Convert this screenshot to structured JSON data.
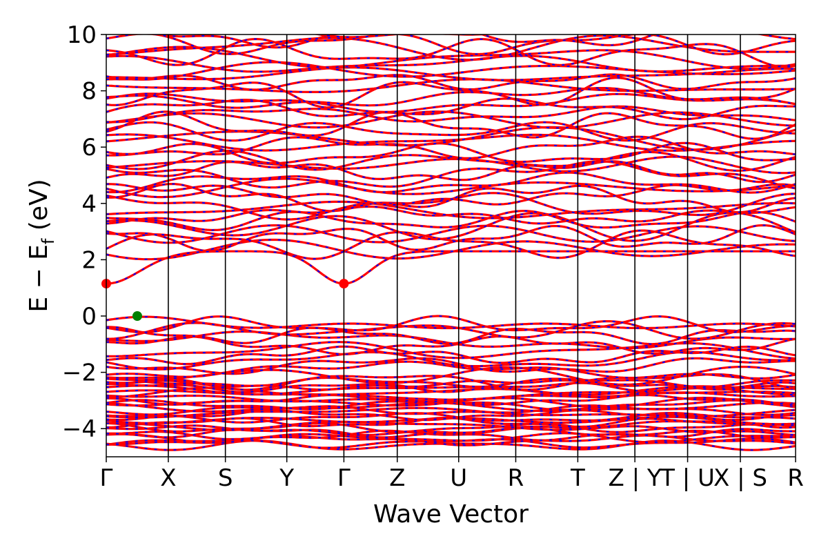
{
  "chart_data": {
    "type": "line",
    "title": "",
    "xlabel": "Wave Vector",
    "ylabel_parts": [
      "E − E",
      "f",
      " (eV)"
    ],
    "ylim": [
      -5,
      10
    ],
    "yticks": [
      {
        "value": 10,
        "label": "10"
      },
      {
        "value": 8,
        "label": "8"
      },
      {
        "value": 6,
        "label": "6"
      },
      {
        "value": 4,
        "label": "4"
      },
      {
        "value": 2,
        "label": "2"
      },
      {
        "value": 0,
        "label": "0"
      },
      {
        "value": -2,
        "label": "−2"
      },
      {
        "value": -4,
        "label": "−4"
      }
    ],
    "xlim": [
      0,
      11.11
    ],
    "kpoints": [
      {
        "x": 0.0,
        "label": "Γ"
      },
      {
        "x": 1.0,
        "label": "X"
      },
      {
        "x": 1.92,
        "label": "S"
      },
      {
        "x": 2.91,
        "label": "Y"
      },
      {
        "x": 3.83,
        "label": "Γ"
      },
      {
        "x": 4.69,
        "label": "Z"
      },
      {
        "x": 5.68,
        "label": "U"
      },
      {
        "x": 6.6,
        "label": "R"
      },
      {
        "x": 7.6,
        "label": "T"
      },
      {
        "x": 8.52,
        "label": "Z | Y"
      },
      {
        "x": 9.37,
        "label": "T | U"
      },
      {
        "x": 10.22,
        "label": "X | S"
      },
      {
        "x": 11.11,
        "label": "R"
      }
    ],
    "series": [
      {
        "color": "#ff0000",
        "style": "solid"
      },
      {
        "color": "#0000ff",
        "style": "dotted"
      }
    ],
    "band_edges": {
      "cbm": [
        {
          "x": 0.0,
          "y": 1.15
        },
        {
          "x": 3.83,
          "y": 1.15
        }
      ],
      "vbm": [
        {
          "x": 0.5,
          "y": 0.0
        }
      ]
    },
    "colors": {
      "cbm": "#ff0000",
      "vbm": "#008000",
      "bands_main": "#ff0000",
      "bands_overlay": "#0000ff"
    }
  }
}
